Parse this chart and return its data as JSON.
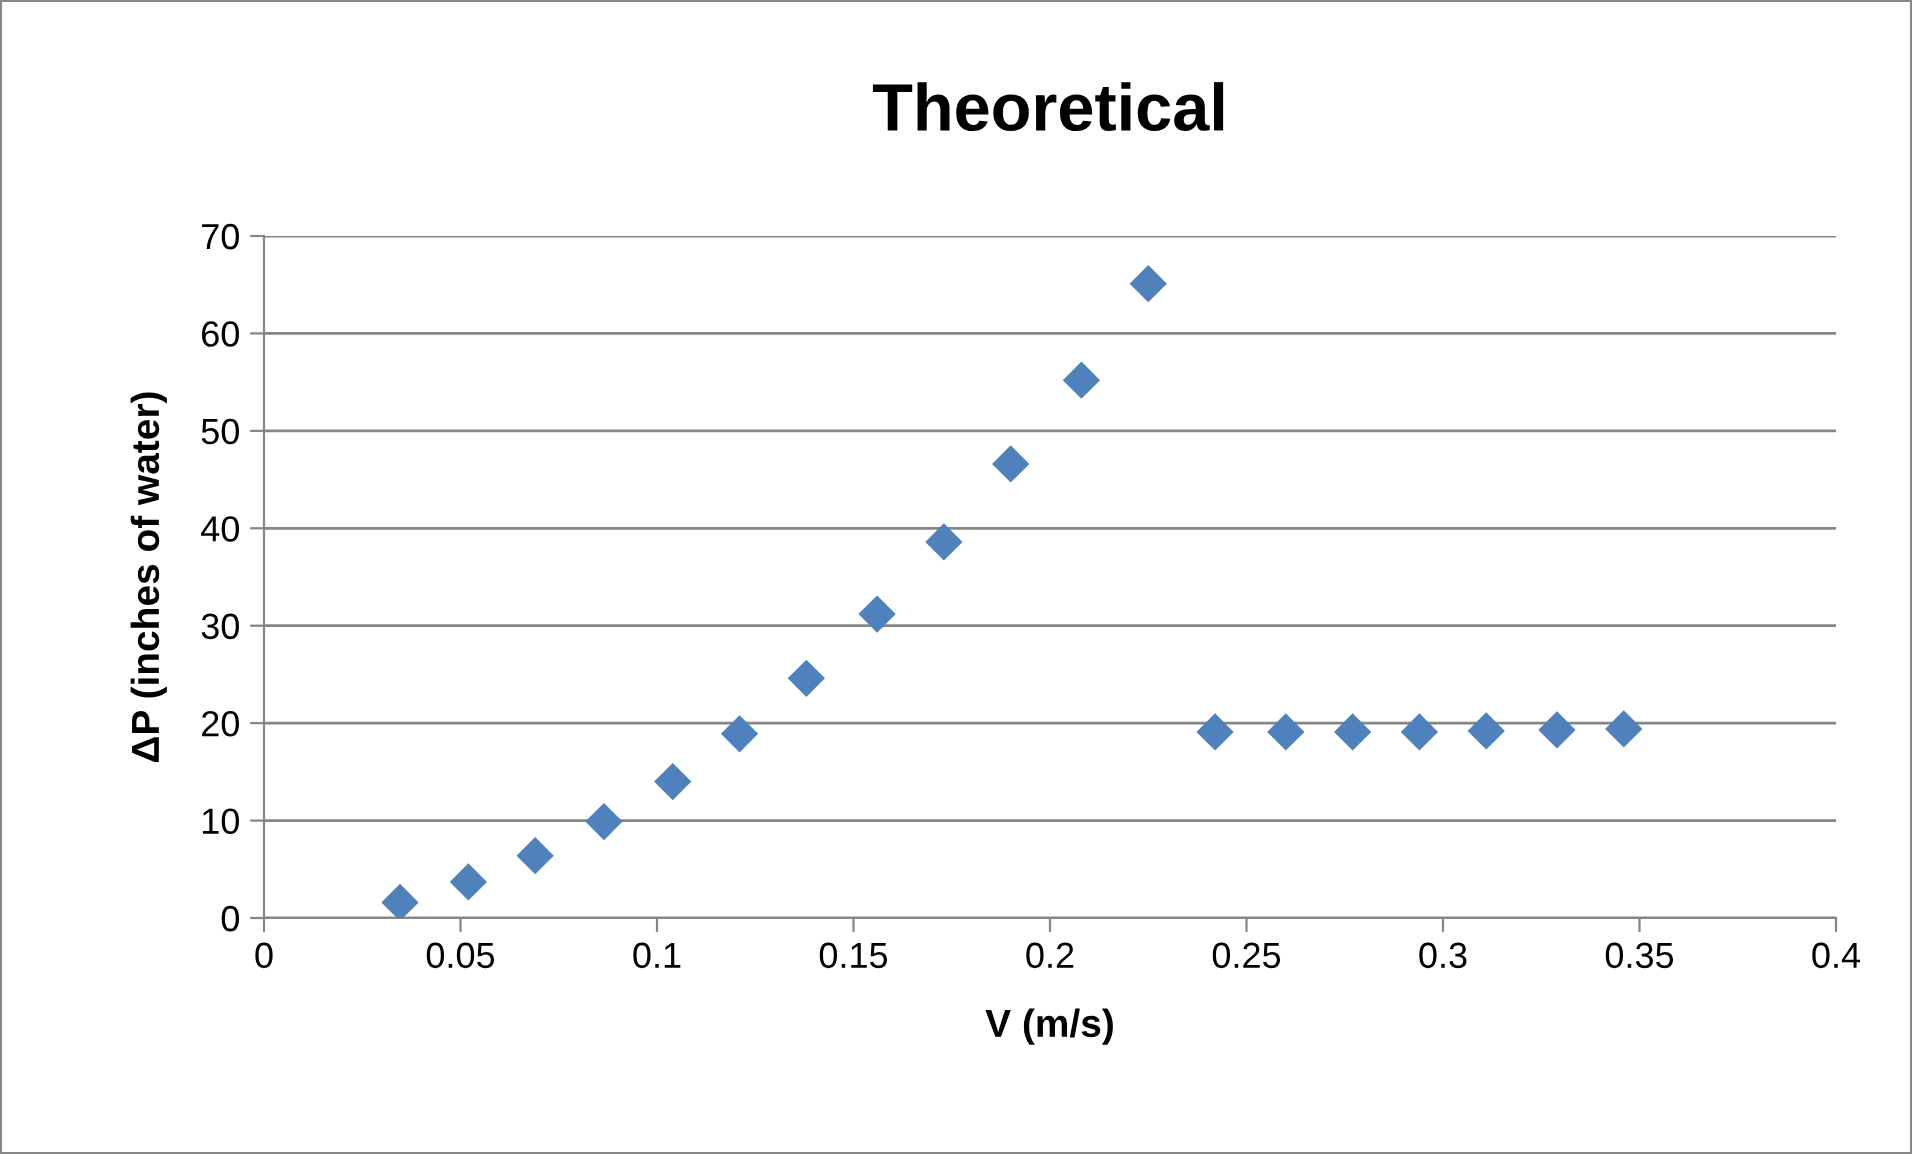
{
  "chart_data": {
    "type": "scatter",
    "title": "Theoretical",
    "xlabel": "V (m/s)",
    "ylabel": "ΔP (inches of water)",
    "x": [
      0.0346,
      0.052,
      0.069,
      0.0865,
      0.104,
      0.121,
      0.138,
      0.156,
      0.173,
      0.19,
      0.208,
      0.225,
      0.242,
      0.26,
      0.277,
      0.294,
      0.311,
      0.329,
      0.346
    ],
    "values": [
      1.6,
      3.7,
      6.4,
      9.9,
      14.0,
      18.9,
      24.6,
      31.2,
      38.6,
      46.6,
      55.2,
      65.1,
      19.1,
      19.1,
      19.1,
      19.1,
      19.2,
      19.3,
      19.4
    ],
    "color": "#4f81bd",
    "marker": "diamond",
    "xlim": [
      0,
      0.4
    ],
    "xticks": [
      {
        "value": 0,
        "label": "0"
      },
      0.05,
      0.1,
      0.15,
      0.2,
      0.25,
      0.3,
      0.35,
      0.4
    ],
    "ylim": [
      0,
      70
    ],
    "yticks": [
      0,
      10,
      20,
      30,
      40,
      50,
      60,
      70
    ],
    "grid": "y",
    "legend": false
  }
}
